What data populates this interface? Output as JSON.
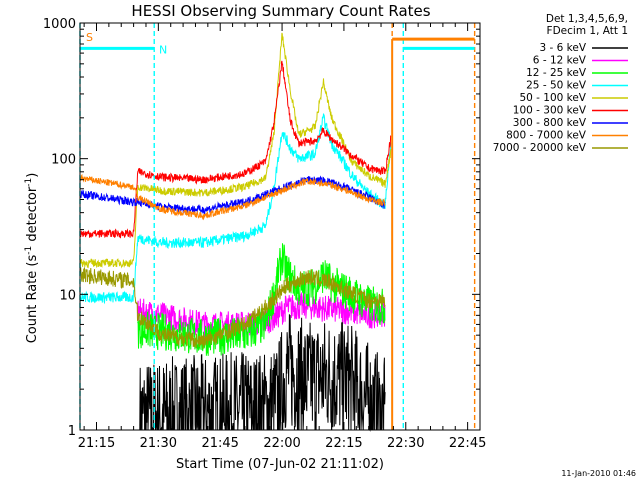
{
  "chart_data": {
    "type": "line",
    "title": "HESSI Observing Summary Count Rates",
    "xlabel": "Start Time (07-Jun-02 21:11:02)",
    "ylabel_main": "Count Rate (s",
    "ylabel_sup1": "-1",
    "ylabel_mid": " detector",
    "ylabel_sup2": "-1",
    "ylabel_end": ")",
    "ylabel": "Count Rate (s^-1 detector^-1)",
    "yscale": "log",
    "ylim": [
      1,
      1000
    ],
    "xlim_minutes": [
      0,
      97
    ],
    "y_ticks": [
      "1",
      "10",
      "100",
      "1000"
    ],
    "x_ticks": [
      {
        "label": "21:15",
        "t": 4
      },
      {
        "label": "21:30",
        "t": 19
      },
      {
        "label": "21:45",
        "t": 34
      },
      {
        "label": "22:00",
        "t": 49
      },
      {
        "label": "22:15",
        "t": 64
      },
      {
        "label": "22:30",
        "t": 79
      },
      {
        "label": "22:45",
        "t": 94
      }
    ],
    "legend_header": [
      "Det 1,3,4,5,6,9,",
      "FDecim 1, Att 1"
    ],
    "legend_placement": "right",
    "series": [
      {
        "name": "3 - 6 keV",
        "color": "#000000"
      },
      {
        "name": "6 - 12 keV",
        "color": "#ff00ff"
      },
      {
        "name": "12 - 25 keV",
        "color": "#00ff00"
      },
      {
        "name": "25 - 50 keV",
        "color": "#00ffff"
      },
      {
        "name": "50 - 100 keV",
        "color": "#cccc00"
      },
      {
        "name": "100 - 300 keV",
        "color": "#ff0000"
      },
      {
        "name": "300 - 800 keV",
        "color": "#0000ff"
      },
      {
        "name": "800 - 7000 keV",
        "color": "#ff8000"
      },
      {
        "name": "7000 - 20000 keV",
        "color": "#999900"
      }
    ],
    "annotations": [
      {
        "text": "S",
        "t": 0.5,
        "y": 800,
        "color": "#ff8000"
      },
      {
        "text": "N",
        "t": 18.2,
        "y": 650,
        "color": "#00ffff"
      }
    ],
    "vertical_markers": [
      {
        "t": 0,
        "color": "#00ffff"
      },
      {
        "t": 18,
        "color": "#00ffff"
      },
      {
        "t": 75.7,
        "color": "#ff8000"
      },
      {
        "t": 78.4,
        "color": "#00ffff"
      },
      {
        "t": 95.7,
        "color": "#ff8000"
      }
    ],
    "flag_segments": [
      {
        "color": "#00ffff",
        "y": 650,
        "from_t": 0,
        "to_t": 18
      },
      {
        "color": "#00ffff",
        "y": 650,
        "from_t": 78.4,
        "to_t": 95.7
      },
      {
        "color": "#ff8000",
        "y": 760,
        "from_t": 75.7,
        "to_t": 95.7
      }
    ],
    "profiles": {
      "3 - 6 keV": [
        [
          14.5,
          1.2
        ],
        [
          30,
          1.3
        ],
        [
          45,
          1.4
        ],
        [
          48,
          1.6
        ],
        [
          50,
          2.8
        ],
        [
          55,
          2.3
        ],
        [
          60,
          2.5
        ],
        [
          65,
          2.3
        ],
        [
          70,
          1.6
        ],
        [
          74,
          1.2
        ]
      ],
      "6 - 12 keV": [
        [
          14,
          7.5
        ],
        [
          20,
          7.0
        ],
        [
          30,
          6.0
        ],
        [
          40,
          6.0
        ],
        [
          45,
          6.3
        ],
        [
          48,
          7.0
        ],
        [
          50,
          8.0
        ],
        [
          55,
          8.2
        ],
        [
          60,
          7.8
        ],
        [
          65,
          7.5
        ],
        [
          70,
          7.0
        ],
        [
          74,
          7.2
        ]
      ],
      "12 - 25 keV": [
        [
          14,
          5.5
        ],
        [
          20,
          5.3
        ],
        [
          30,
          4.8
        ],
        [
          40,
          5.0
        ],
        [
          45,
          6.0
        ],
        [
          47,
          10.0
        ],
        [
          49,
          19.0
        ],
        [
          50,
          15.0
        ],
        [
          53,
          11.0
        ],
        [
          57,
          11.5
        ],
        [
          59,
          14.0
        ],
        [
          61,
          12.0
        ],
        [
          66,
          10.0
        ],
        [
          70,
          8.5
        ],
        [
          74,
          8.0
        ]
      ],
      "25 - 50 keV": [
        [
          0,
          9.5
        ],
        [
          13,
          9.5
        ],
        [
          14,
          26
        ],
        [
          20,
          24
        ],
        [
          30,
          24
        ],
        [
          40,
          27
        ],
        [
          45,
          32
        ],
        [
          47,
          60
        ],
        [
          49,
          160
        ],
        [
          51,
          120
        ],
        [
          53,
          100
        ],
        [
          57,
          108
        ],
        [
          59,
          200
        ],
        [
          61,
          130
        ],
        [
          66,
          75
        ],
        [
          70,
          55
        ],
        [
          74,
          45
        ],
        [
          75.5,
          150
        ]
      ],
      "50 - 100 keV": [
        [
          0,
          17
        ],
        [
          13,
          17
        ],
        [
          14,
          62
        ],
        [
          20,
          58
        ],
        [
          30,
          56
        ],
        [
          40,
          62
        ],
        [
          45,
          72
        ],
        [
          47,
          150
        ],
        [
          49,
          830
        ],
        [
          51,
          320
        ],
        [
          53,
          150
        ],
        [
          57,
          170
        ],
        [
          59,
          370
        ],
        [
          61,
          200
        ],
        [
          66,
          95
        ],
        [
          70,
          75
        ],
        [
          74,
          65
        ],
        [
          75.5,
          120
        ]
      ],
      "100 - 300 keV": [
        [
          0,
          28
        ],
        [
          13,
          28
        ],
        [
          14,
          80
        ],
        [
          20,
          73
        ],
        [
          30,
          70
        ],
        [
          40,
          78
        ],
        [
          45,
          95
        ],
        [
          47,
          180
        ],
        [
          49,
          520
        ],
        [
          51,
          190
        ],
        [
          53,
          130
        ],
        [
          57,
          135
        ],
        [
          59,
          160
        ],
        [
          61,
          140
        ],
        [
          66,
          105
        ],
        [
          70,
          85
        ],
        [
          74,
          80
        ],
        [
          75.5,
          150
        ]
      ],
      "300 - 800 keV": [
        [
          0,
          55
        ],
        [
          13,
          48
        ],
        [
          14,
          48
        ],
        [
          20,
          44
        ],
        [
          30,
          42
        ],
        [
          40,
          48
        ],
        [
          50,
          62
        ],
        [
          55,
          70
        ],
        [
          60,
          68
        ],
        [
          65,
          60
        ],
        [
          70,
          52
        ],
        [
          74,
          45
        ]
      ],
      "800 - 7000 keV": [
        [
          0,
          72
        ],
        [
          13,
          62
        ],
        [
          14,
          52
        ],
        [
          20,
          42
        ],
        [
          30,
          38
        ],
        [
          40,
          45
        ],
        [
          50,
          60
        ],
        [
          55,
          68
        ],
        [
          60,
          65
        ],
        [
          65,
          58
        ],
        [
          70,
          50
        ],
        [
          74,
          47
        ]
      ],
      "7000 - 20000 keV": [
        [
          0,
          14
        ],
        [
          13,
          12.5
        ],
        [
          14,
          7.0
        ],
        [
          20,
          5.0
        ],
        [
          30,
          4.5
        ],
        [
          40,
          6.0
        ],
        [
          45,
          8.0
        ],
        [
          50,
          11.5
        ],
        [
          55,
          13.5
        ],
        [
          60,
          12.5
        ],
        [
          65,
          10.5
        ],
        [
          70,
          9.0
        ],
        [
          74,
          9.0
        ]
      ]
    }
  },
  "footer_date": "11-Jan-2010 01:46"
}
